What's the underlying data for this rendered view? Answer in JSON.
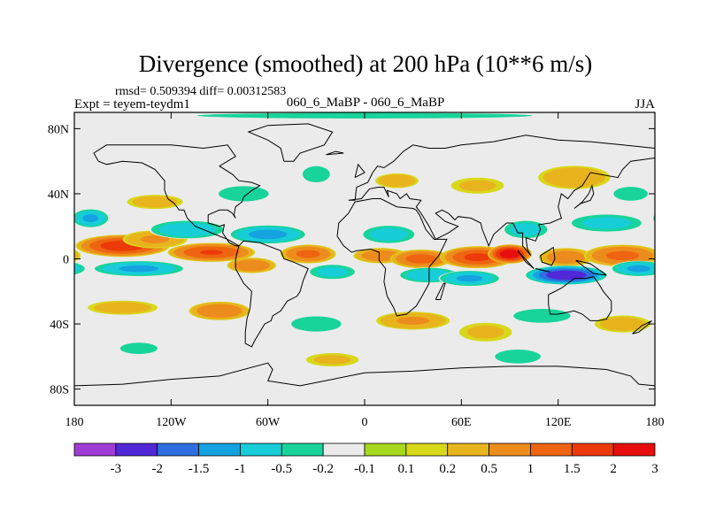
{
  "chart_data": {
    "type": "heatmap",
    "title": "Divergence (smoothed) at 200 hPa (10**6 m/s)",
    "subtitle_left_stats": "rmsd= 0.509394 diff= 0.00312583",
    "subtitle_left": "Expt = teyem-teydm1",
    "subtitle_center": "060_6_MaBP - 060_6_MaBP",
    "subtitle_right": "JJA",
    "x_axis": {
      "range": [
        -180,
        180
      ],
      "ticks": [
        {
          "value": -180,
          "label": "180"
        },
        {
          "value": -120,
          "label": "120W"
        },
        {
          "value": -60,
          "label": "60W"
        },
        {
          "value": 0,
          "label": "0"
        },
        {
          "value": 60,
          "label": "60E"
        },
        {
          "value": 120,
          "label": "120E"
        },
        {
          "value": 180,
          "label": "180"
        }
      ]
    },
    "y_axis": {
      "range": [
        -90,
        90
      ],
      "ticks": [
        {
          "value": 80,
          "label": "80N"
        },
        {
          "value": 40,
          "label": "40N"
        },
        {
          "value": 0,
          "label": "0"
        },
        {
          "value": -40,
          "label": "40S"
        },
        {
          "value": -80,
          "label": "80S"
        }
      ]
    },
    "colorbar": {
      "colors": [
        "#a03cd6",
        "#5028d8",
        "#2d6ee0",
        "#15a2e0",
        "#17cdd8",
        "#18d49a",
        "#ebebeb",
        "#a6d81e",
        "#d8d81a",
        "#e8b41e",
        "#ec8c1c",
        "#ee6410",
        "#ec3a0a",
        "#e80e0e"
      ],
      "labels": [
        "-3",
        "-2",
        "-1.5",
        "-1",
        "-0.5",
        "-0.2",
        "-0.1",
        "0.1",
        "0.2",
        "0.5",
        "1",
        "1.5",
        "2",
        "3"
      ]
    },
    "blobs": [
      {
        "lon": -150,
        "lat": 8,
        "rlon": 30,
        "rlat": 7,
        "v": 1.9
      },
      {
        "lon": -130,
        "lat": 12,
        "rlon": 22,
        "rlat": 6,
        "v": 0.6
      },
      {
        "lon": -95,
        "lat": 4,
        "rlon": 28,
        "rlat": 6,
        "v": 1.6
      },
      {
        "lon": -70,
        "lat": -4,
        "rlon": 16,
        "rlat": 5,
        "v": 1.0
      },
      {
        "lon": -35,
        "lat": 3,
        "rlon": 18,
        "rlat": 6,
        "v": 1.2
      },
      {
        "lon": 10,
        "lat": 2,
        "rlon": 18,
        "rlat": 5,
        "v": 0.9
      },
      {
        "lon": 35,
        "lat": 0,
        "rlon": 20,
        "rlat": 6,
        "v": 1.3
      },
      {
        "lon": 70,
        "lat": 1,
        "rlon": 24,
        "rlat": 7,
        "v": 1.7
      },
      {
        "lon": 90,
        "lat": 3,
        "rlon": 14,
        "rlat": 6,
        "v": 2.5
      },
      {
        "lon": 125,
        "lat": 1,
        "rlon": 18,
        "rlat": 6,
        "v": 0.9
      },
      {
        "lon": 160,
        "lat": 2,
        "rlon": 25,
        "rlat": 7,
        "v": 1.2
      },
      {
        "lon": -170,
        "lat": 25,
        "rlon": 12,
        "rlat": 6,
        "v": -1.2
      },
      {
        "lon": -140,
        "lat": -6,
        "rlon": 30,
        "rlat": 5,
        "v": -1.2
      },
      {
        "lon": -110,
        "lat": 18,
        "rlon": 25,
        "rlat": 6,
        "v": -1.0
      },
      {
        "lon": -60,
        "lat": 15,
        "rlon": 25,
        "rlat": 6,
        "v": -1.3
      },
      {
        "lon": -20,
        "lat": -8,
        "rlon": 16,
        "rlat": 5,
        "v": -0.8
      },
      {
        "lon": 15,
        "lat": 15,
        "rlon": 18,
        "rlat": 6,
        "v": -0.9
      },
      {
        "lon": 40,
        "lat": -10,
        "rlon": 20,
        "rlat": 5,
        "v": -1.0
      },
      {
        "lon": 65,
        "lat": -12,
        "rlon": 20,
        "rlat": 5,
        "v": -1.2
      },
      {
        "lon": 125,
        "lat": -10,
        "rlon": 26,
        "rlat": 6,
        "v": -2.6
      },
      {
        "lon": 170,
        "lat": -6,
        "rlon": 18,
        "rlat": 5,
        "v": -1.2
      },
      {
        "lon": 150,
        "lat": 22,
        "rlon": 25,
        "rlat": 6,
        "v": -0.8
      },
      {
        "lon": 100,
        "lat": 18,
        "rlon": 15,
        "rlat": 6,
        "v": -0.9
      },
      {
        "lon": -130,
        "lat": 35,
        "rlon": 20,
        "rlat": 5,
        "v": 0.4
      },
      {
        "lon": -75,
        "lat": 40,
        "rlon": 20,
        "rlat": 6,
        "v": -0.5
      },
      {
        "lon": -30,
        "lat": 52,
        "rlon": 12,
        "rlat": 7,
        "v": -0.4
      },
      {
        "lon": 20,
        "lat": 48,
        "rlon": 15,
        "rlat": 5,
        "v": 0.5
      },
      {
        "lon": 70,
        "lat": 45,
        "rlon": 20,
        "rlat": 6,
        "v": 0.3
      },
      {
        "lon": 130,
        "lat": 50,
        "rlon": 25,
        "rlat": 8,
        "v": 0.5
      },
      {
        "lon": 165,
        "lat": 40,
        "rlon": 15,
        "rlat": 6,
        "v": -0.4
      },
      {
        "lon": -150,
        "lat": -30,
        "rlon": 25,
        "rlat": 5,
        "v": 0.4
      },
      {
        "lon": -90,
        "lat": -32,
        "rlon": 20,
        "rlat": 6,
        "v": 1.0
      },
      {
        "lon": -30,
        "lat": -40,
        "rlon": 20,
        "rlat": 6,
        "v": -0.5
      },
      {
        "lon": 30,
        "lat": -38,
        "rlon": 25,
        "rlat": 6,
        "v": 0.6
      },
      {
        "lon": 75,
        "lat": -45,
        "rlon": 20,
        "rlat": 7,
        "v": 0.3
      },
      {
        "lon": 110,
        "lat": -35,
        "rlon": 25,
        "rlat": 6,
        "v": -0.4
      },
      {
        "lon": 160,
        "lat": -40,
        "rlon": 20,
        "rlat": 6,
        "v": 0.4
      },
      {
        "lon": -140,
        "lat": -55,
        "rlon": 20,
        "rlat": 6,
        "v": -0.3
      },
      {
        "lon": -20,
        "lat": -62,
        "rlon": 20,
        "rlat": 5,
        "v": 0.3
      },
      {
        "lon": 95,
        "lat": -60,
        "rlon": 20,
        "rlat": 6,
        "v": -0.4
      },
      {
        "lon": 0,
        "lat": 88,
        "rlon": 180,
        "rlat": 3,
        "v": -0.3
      },
      {
        "lon": 0,
        "lat": -88,
        "rlon": 180,
        "rlat": 3,
        "v": -0.15
      }
    ]
  },
  "coastlines": [
    [
      [
        -168,
        65
      ],
      [
        -160,
        70
      ],
      [
        -140,
        70
      ],
      [
        -120,
        70
      ],
      [
        -100,
        68
      ],
      [
        -85,
        70
      ],
      [
        -80,
        63
      ],
      [
        -90,
        57
      ],
      [
        -82,
        52
      ],
      [
        -78,
        48
      ],
      [
        -70,
        47
      ],
      [
        -65,
        45
      ],
      [
        -70,
        42
      ],
      [
        -75,
        38
      ],
      [
        -76,
        35
      ],
      [
        -80,
        32
      ],
      [
        -81,
        27
      ],
      [
        -80,
        25
      ],
      [
        -82,
        28
      ],
      [
        -85,
        30
      ],
      [
        -90,
        30
      ],
      [
        -97,
        27
      ],
      [
        -97,
        22
      ],
      [
        -90,
        20
      ],
      [
        -87,
        21
      ],
      [
        -88,
        16
      ],
      [
        -84,
        10
      ],
      [
        -80,
        8
      ],
      [
        -78,
        8
      ],
      [
        -85,
        12
      ],
      [
        -90,
        14
      ],
      [
        -95,
        16
      ],
      [
        -105,
        20
      ],
      [
        -110,
        25
      ],
      [
        -112,
        30
      ],
      [
        -115,
        30
      ],
      [
        -118,
        34
      ],
      [
        -122,
        37
      ],
      [
        -124,
        42
      ],
      [
        -124,
        48
      ],
      [
        -130,
        55
      ],
      [
        -138,
        59
      ],
      [
        -150,
        60
      ],
      [
        -160,
        58
      ],
      [
        -165,
        60
      ],
      [
        -168,
        65
      ]
    ],
    [
      [
        -78,
        8
      ],
      [
        -75,
        11
      ],
      [
        -65,
        10
      ],
      [
        -60,
        8
      ],
      [
        -52,
        5
      ],
      [
        -50,
        0
      ],
      [
        -44,
        -2
      ],
      [
        -35,
        -6
      ],
      [
        -38,
        -13
      ],
      [
        -40,
        -20
      ],
      [
        -42,
        -23
      ],
      [
        -48,
        -26
      ],
      [
        -52,
        -32
      ],
      [
        -57,
        -35
      ],
      [
        -58,
        -38
      ],
      [
        -62,
        -40
      ],
      [
        -65,
        -45
      ],
      [
        -68,
        -50
      ],
      [
        -70,
        -54
      ],
      [
        -74,
        -52
      ],
      [
        -74,
        -45
      ],
      [
        -73,
        -37
      ],
      [
        -71,
        -30
      ],
      [
        -70,
        -20
      ],
      [
        -75,
        -15
      ],
      [
        -80,
        -6
      ],
      [
        -80,
        0
      ],
      [
        -78,
        8
      ]
    ],
    [
      [
        -50,
        60
      ],
      [
        -44,
        60
      ],
      [
        -40,
        65
      ],
      [
        -25,
        70
      ],
      [
        -20,
        78
      ],
      [
        -35,
        83
      ],
      [
        -60,
        82
      ],
      [
        -72,
        78
      ],
      [
        -60,
        73
      ],
      [
        -52,
        68
      ],
      [
        -50,
        60
      ]
    ],
    [
      [
        -10,
        36
      ],
      [
        -6,
        36
      ],
      [
        -5,
        44
      ],
      [
        2,
        47
      ],
      [
        5,
        53
      ],
      [
        8,
        57
      ],
      [
        12,
        56
      ],
      [
        18,
        60
      ],
      [
        24,
        66
      ],
      [
        30,
        70
      ],
      [
        40,
        68
      ],
      [
        50,
        68
      ],
      [
        60,
        70
      ],
      [
        80,
        72
      ],
      [
        100,
        76
      ],
      [
        120,
        73
      ],
      [
        140,
        72
      ],
      [
        160,
        70
      ],
      [
        180,
        68
      ],
      [
        180,
        62
      ],
      [
        165,
        60
      ],
      [
        160,
        55
      ],
      [
        157,
        50
      ],
      [
        140,
        53
      ],
      [
        135,
        45
      ],
      [
        130,
        42
      ],
      [
        126,
        37
      ],
      [
        122,
        40
      ],
      [
        120,
        32
      ],
      [
        122,
        25
      ],
      [
        115,
        22
      ],
      [
        108,
        21
      ],
      [
        109,
        18
      ],
      [
        106,
        11
      ],
      [
        100,
        13
      ],
      [
        101,
        6
      ],
      [
        103,
        2
      ],
      [
        98,
        8
      ],
      [
        98,
        16
      ],
      [
        95,
        16
      ],
      [
        92,
        22
      ],
      [
        88,
        22
      ],
      [
        80,
        15
      ],
      [
        77,
        8
      ],
      [
        73,
        18
      ],
      [
        72,
        22
      ],
      [
        66,
        25
      ],
      [
        58,
        26
      ],
      [
        56,
        24
      ],
      [
        52,
        28
      ],
      [
        48,
        30
      ],
      [
        44,
        28
      ],
      [
        50,
        23
      ],
      [
        58,
        20
      ],
      [
        52,
        16
      ],
      [
        44,
        12
      ],
      [
        40,
        20
      ],
      [
        35,
        28
      ],
      [
        32,
        32
      ],
      [
        35,
        36
      ],
      [
        28,
        37
      ],
      [
        26,
        40
      ],
      [
        22,
        37
      ],
      [
        20,
        40
      ],
      [
        14,
        42
      ],
      [
        15,
        38
      ],
      [
        12,
        44
      ],
      [
        8,
        44
      ],
      [
        3,
        43
      ],
      [
        -2,
        37
      ],
      [
        -10,
        36
      ]
    ],
    [
      [
        -17,
        14
      ],
      [
        -16,
        22
      ],
      [
        -10,
        28
      ],
      [
        -6,
        35
      ],
      [
        5,
        37
      ],
      [
        10,
        37
      ],
      [
        20,
        32
      ],
      [
        30,
        31
      ],
      [
        32,
        30
      ],
      [
        34,
        27
      ],
      [
        38,
        18
      ],
      [
        43,
        12
      ],
      [
        51,
        12
      ],
      [
        46,
        2
      ],
      [
        40,
        -5
      ],
      [
        40,
        -15
      ],
      [
        35,
        -24
      ],
      [
        32,
        -29
      ],
      [
        26,
        -34
      ],
      [
        20,
        -35
      ],
      [
        18,
        -30
      ],
      [
        14,
        -23
      ],
      [
        12,
        -14
      ],
      [
        13,
        -6
      ],
      [
        9,
        -1
      ],
      [
        9,
        4
      ],
      [
        4,
        6
      ],
      [
        -5,
        5
      ],
      [
        -8,
        4
      ],
      [
        -13,
        8
      ],
      [
        -17,
        14
      ]
    ],
    [
      [
        114,
        -22
      ],
      [
        122,
        -18
      ],
      [
        130,
        -12
      ],
      [
        137,
        -12
      ],
      [
        142,
        -11
      ],
      [
        145,
        -15
      ],
      [
        148,
        -20
      ],
      [
        153,
        -26
      ],
      [
        153,
        -32
      ],
      [
        150,
        -37
      ],
      [
        145,
        -38
      ],
      [
        140,
        -38
      ],
      [
        135,
        -34
      ],
      [
        130,
        -32
      ],
      [
        120,
        -34
      ],
      [
        115,
        -34
      ],
      [
        114,
        -28
      ],
      [
        114,
        -22
      ]
    ],
    [
      [
        -180,
        -78
      ],
      [
        -150,
        -77
      ],
      [
        -120,
        -74
      ],
      [
        -90,
        -72
      ],
      [
        -60,
        -64
      ],
      [
        -57,
        -68
      ],
      [
        -60,
        -75
      ],
      [
        -40,
        -78
      ],
      [
        -20,
        -74
      ],
      [
        0,
        -70
      ],
      [
        30,
        -69
      ],
      [
        60,
        -67
      ],
      [
        90,
        -66
      ],
      [
        120,
        -66
      ],
      [
        150,
        -68
      ],
      [
        165,
        -72
      ],
      [
        170,
        -77
      ],
      [
        180,
        -78
      ]
    ],
    [
      [
        95,
        5
      ],
      [
        105,
        -6
      ],
      [
        100,
        -2
      ],
      [
        95,
        5
      ]
    ],
    [
      [
        106,
        -6
      ],
      [
        115,
        -8
      ],
      [
        110,
        -7
      ],
      [
        106,
        -6
      ]
    ],
    [
      [
        109,
        2
      ],
      [
        117,
        7
      ],
      [
        118,
        0
      ],
      [
        116,
        -4
      ],
      [
        110,
        -2
      ],
      [
        109,
        2
      ]
    ],
    [
      [
        131,
        -1
      ],
      [
        140,
        -3
      ],
      [
        150,
        -10
      ],
      [
        142,
        -9
      ],
      [
        135,
        -4
      ],
      [
        131,
        -1
      ]
    ],
    [
      [
        130,
        31
      ],
      [
        134,
        34
      ],
      [
        140,
        36
      ],
      [
        142,
        40
      ],
      [
        141,
        45
      ],
      [
        139,
        40
      ],
      [
        135,
        35
      ],
      [
        130,
        31
      ]
    ],
    [
      [
        166,
        -46
      ],
      [
        172,
        -41
      ],
      [
        178,
        -38
      ],
      [
        175,
        -41
      ],
      [
        170,
        -45
      ],
      [
        166,
        -46
      ]
    ],
    [
      [
        44,
        -25
      ],
      [
        49,
        -15
      ],
      [
        50,
        -15
      ],
      [
        47,
        -25
      ],
      [
        44,
        -25
      ]
    ],
    [
      [
        -6,
        50
      ],
      [
        -4,
        58
      ],
      [
        0,
        53
      ],
      [
        -6,
        50
      ]
    ],
    [
      [
        -24,
        64
      ],
      [
        -13,
        65
      ],
      [
        -18,
        66
      ],
      [
        -24,
        64
      ]
    ]
  ]
}
